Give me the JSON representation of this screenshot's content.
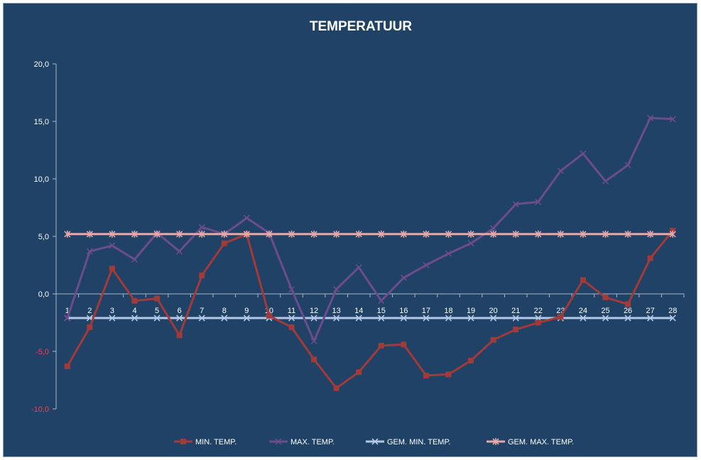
{
  "chart_data": {
    "type": "line",
    "title": "TEMPERATUUR",
    "xlabel": "",
    "ylabel": "",
    "ylim": [
      -10,
      20
    ],
    "yticks": [
      20,
      15,
      10,
      5,
      0,
      -5,
      -10
    ],
    "ytick_labels": [
      "20,0",
      "15,0",
      "10,0",
      "5,0",
      "0,0",
      "-5,0",
      "-10,0"
    ],
    "x": [
      "1",
      "2",
      "3",
      "4",
      "5",
      "6",
      "7",
      "8",
      "9",
      "10",
      "11",
      "12",
      "13",
      "14",
      "15",
      "16",
      "17",
      "18",
      "19",
      "20",
      "21",
      "22",
      "23",
      "24",
      "25",
      "26",
      "27",
      "28"
    ],
    "grid": false,
    "legend_position": "bottom",
    "series": [
      {
        "name": "MIN. TEMP.",
        "color": "#a33a3a",
        "marker": "square",
        "values": [
          -6.3,
          -2.9,
          2.2,
          -0.6,
          -0.4,
          -3.6,
          1.6,
          4.4,
          5.2,
          -1.9,
          -2.9,
          -5.7,
          -8.2,
          -6.8,
          -4.5,
          -4.4,
          -7.1,
          -7.0,
          -5.8,
          -4.0,
          -3.1,
          -2.5,
          -2.0,
          1.2,
          -0.3,
          -0.9,
          3.1,
          5.5
        ]
      },
      {
        "name": "MAX. TEMP.",
        "color": "#6c4c8c",
        "marker": "x",
        "values": [
          -2.1,
          3.7,
          4.2,
          3.0,
          5.3,
          3.7,
          5.8,
          5.2,
          6.6,
          5.3,
          0.4,
          -4.1,
          0.4,
          2.3,
          -0.6,
          1.4,
          2.5,
          3.5,
          4.4,
          5.7,
          7.8,
          8.0,
          10.7,
          12.2,
          9.8,
          11.2,
          15.3,
          15.2
        ]
      },
      {
        "name": "GEM. MIN. TEMP.",
        "color": "#b4c8e6",
        "marker": "x",
        "values": [
          -2.1,
          -2.1,
          -2.1,
          -2.1,
          -2.1,
          -2.1,
          -2.1,
          -2.1,
          -2.1,
          -2.1,
          -2.1,
          -2.1,
          -2.1,
          -2.1,
          -2.1,
          -2.1,
          -2.1,
          -2.1,
          -2.1,
          -2.1,
          -2.1,
          -2.1,
          -2.1,
          -2.1,
          -2.1,
          -2.1,
          -2.1,
          -2.1
        ]
      },
      {
        "name": "GEM. MAX. TEMP.",
        "color": "#e6a8a8",
        "marker": "asterisk",
        "values": [
          5.2,
          5.2,
          5.2,
          5.2,
          5.2,
          5.2,
          5.2,
          5.2,
          5.2,
          5.2,
          5.2,
          5.2,
          5.2,
          5.2,
          5.2,
          5.2,
          5.2,
          5.2,
          5.2,
          5.2,
          5.2,
          5.2,
          5.2,
          5.2,
          5.2,
          5.2,
          5.2,
          5.2
        ]
      }
    ],
    "colors": {
      "background": "#1f4266",
      "axis": "#a8b8c8",
      "text": "#ffffff",
      "negative_tick_label": "#ff3b4e"
    }
  }
}
